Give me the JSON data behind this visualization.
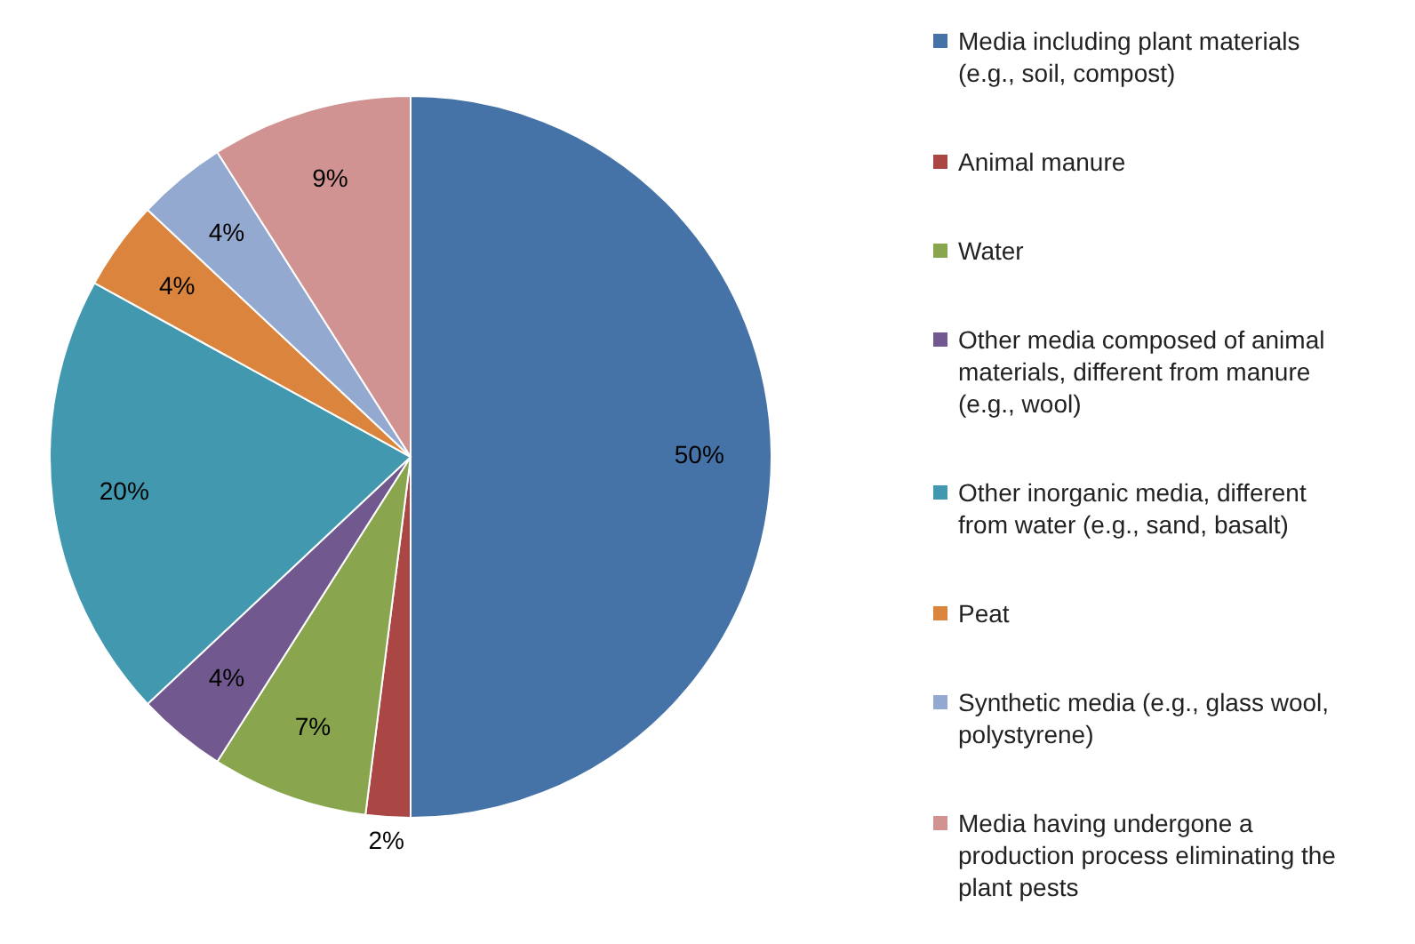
{
  "chart_data": {
    "type": "pie",
    "categories": [
      "Media including plant materials (e.g., soil, compost)",
      "Animal manure",
      "Water",
      "Other media composed of animal materials, different from manure (e.g., wool)",
      "Other inorganic media, different from water (e.g., sand, basalt)",
      "Peat",
      "Synthetic media (e.g., glass wool, polystyrene)",
      "Media having undergone a production process eliminating the plant pests"
    ],
    "values": [
      50,
      2,
      7,
      4,
      20,
      4,
      4,
      9
    ],
    "colors": [
      "#4572a7",
      "#aa4643",
      "#89a54e",
      "#71588f",
      "#4198af",
      "#db843d",
      "#93a9cf",
      "#d19392"
    ],
    "value_labels": [
      "50%",
      "2%",
      "7%",
      "4%",
      "20%",
      "4%",
      "4%",
      "9%"
    ],
    "legend": "right"
  }
}
